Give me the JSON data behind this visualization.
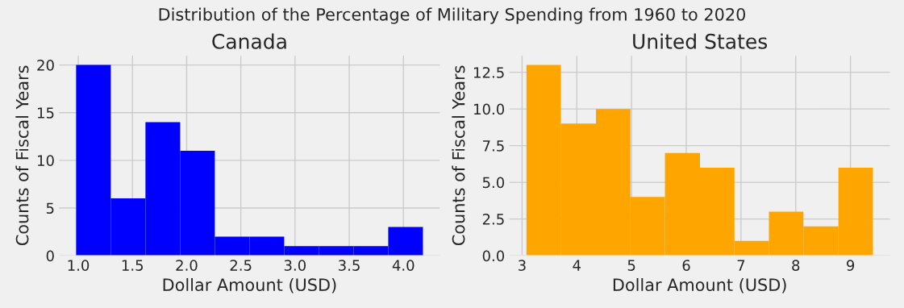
{
  "chart_data": [
    {
      "type": "histogram",
      "title": "Canada",
      "annotations": [
        "Distribution of the Percentage of Military Spending from 1960 to 2020"
      ],
      "xlabel": "Dollar Amount (USD)",
      "ylabel": "Counts of Fiscal Years",
      "bins": [
        0.98,
        1.3,
        1.62,
        1.94,
        2.26,
        2.58,
        2.9,
        3.22,
        3.54,
        3.86,
        4.18
      ],
      "series": [
        {
          "color": "#0000ff",
          "values": [
            20,
            6,
            14,
            11,
            2,
            2,
            1,
            1,
            1,
            3
          ]
        }
      ],
      "xlim": [
        0.82,
        4.34
      ],
      "xticks": [
        {
          "value": 1,
          "label": "1.0"
        },
        1.5,
        {
          "value": 2,
          "label": "2.0"
        },
        2.5,
        {
          "value": 3,
          "label": "3.0"
        },
        3.5,
        {
          "value": 4,
          "label": "4.0"
        }
      ],
      "ylim": [
        0,
        21
      ],
      "yticks": [
        0,
        5,
        10,
        15,
        20
      ],
      "grid": true
    },
    {
      "type": "histogram",
      "title": "United States",
      "xlabel": "Dollar Amount (USD)",
      "ylabel": "Counts of Fiscal Years",
      "bins": [
        3.08,
        3.71,
        4.35,
        4.98,
        5.61,
        6.25,
        6.88,
        7.51,
        8.14,
        8.78,
        9.41
      ],
      "series": [
        {
          "color": "#ffa500",
          "values": [
            13,
            9,
            10,
            4,
            7,
            6,
            1,
            3,
            2,
            6
          ]
        }
      ],
      "xlim": [
        2.76,
        9.73
      ],
      "xticks": [
        3,
        4,
        5,
        6,
        7,
        8,
        9
      ],
      "ylim": [
        0,
        13.65
      ],
      "yticks": [
        {
          "value": 0,
          "label": "0.0"
        },
        2.5,
        {
          "value": 5,
          "label": "5.0"
        },
        7.5,
        {
          "value": 10,
          "label": "10.0"
        },
        12.5
      ],
      "grid": true
    }
  ]
}
